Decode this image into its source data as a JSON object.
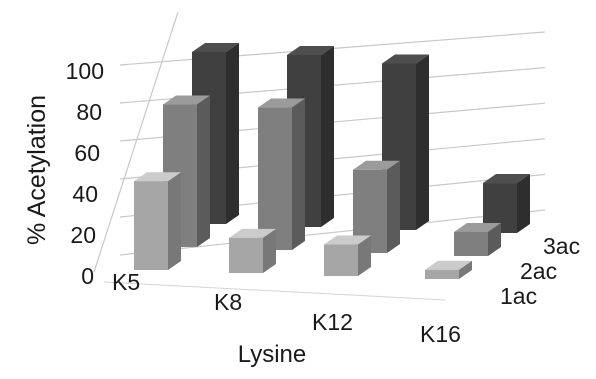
{
  "chart_data": {
    "type": "bar",
    "style": "3d-clustered-depth",
    "categories": [
      "K5",
      "K8",
      "K12",
      "K16"
    ],
    "series": [
      {
        "name": "1ac",
        "values": [
          48,
          19,
          17,
          5
        ],
        "color": "#a6a6a6"
      },
      {
        "name": "2ac",
        "values": [
          77,
          77,
          45,
          13
        ],
        "color": "#7f7f7f"
      },
      {
        "name": "3ac",
        "values": [
          93,
          93,
          90,
          27
        ],
        "color": "#404040"
      }
    ],
    "yticks": [
      "0",
      "20",
      "40",
      "60",
      "80",
      "100"
    ],
    "ylim": [
      0,
      100
    ],
    "ylabel": "% Acetylation",
    "xlabel": "Lysine",
    "grid": true
  }
}
